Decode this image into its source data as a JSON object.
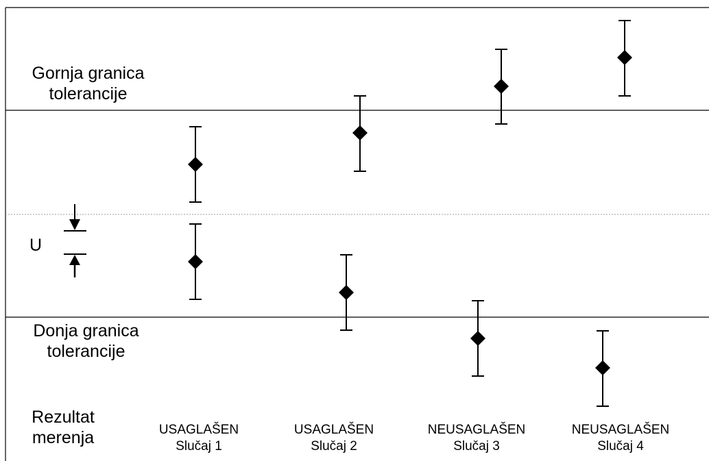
{
  "labels": {
    "upper_limit": [
      "Gornja granica",
      "tolerancije"
    ],
    "lower_limit": [
      "Donja granica",
      "tolerancije"
    ],
    "u_symbol": "U",
    "result_heading": [
      "Rezultat",
      "merenja"
    ]
  },
  "cases": [
    {
      "verdict": "USAGLAŠEN",
      "case": "Slučaj 1"
    },
    {
      "verdict": "USAGLAŠEN",
      "case": "Slučaj 2"
    },
    {
      "verdict": "NEUSAGLAŠEN",
      "case": "Slučaj 3"
    },
    {
      "verdict": "NEUSAGLAŠEN",
      "case": "Slučaj 4"
    }
  ],
  "colors": {
    "line": "#000000",
    "center_line": "#999999",
    "marker": "#000000"
  }
}
